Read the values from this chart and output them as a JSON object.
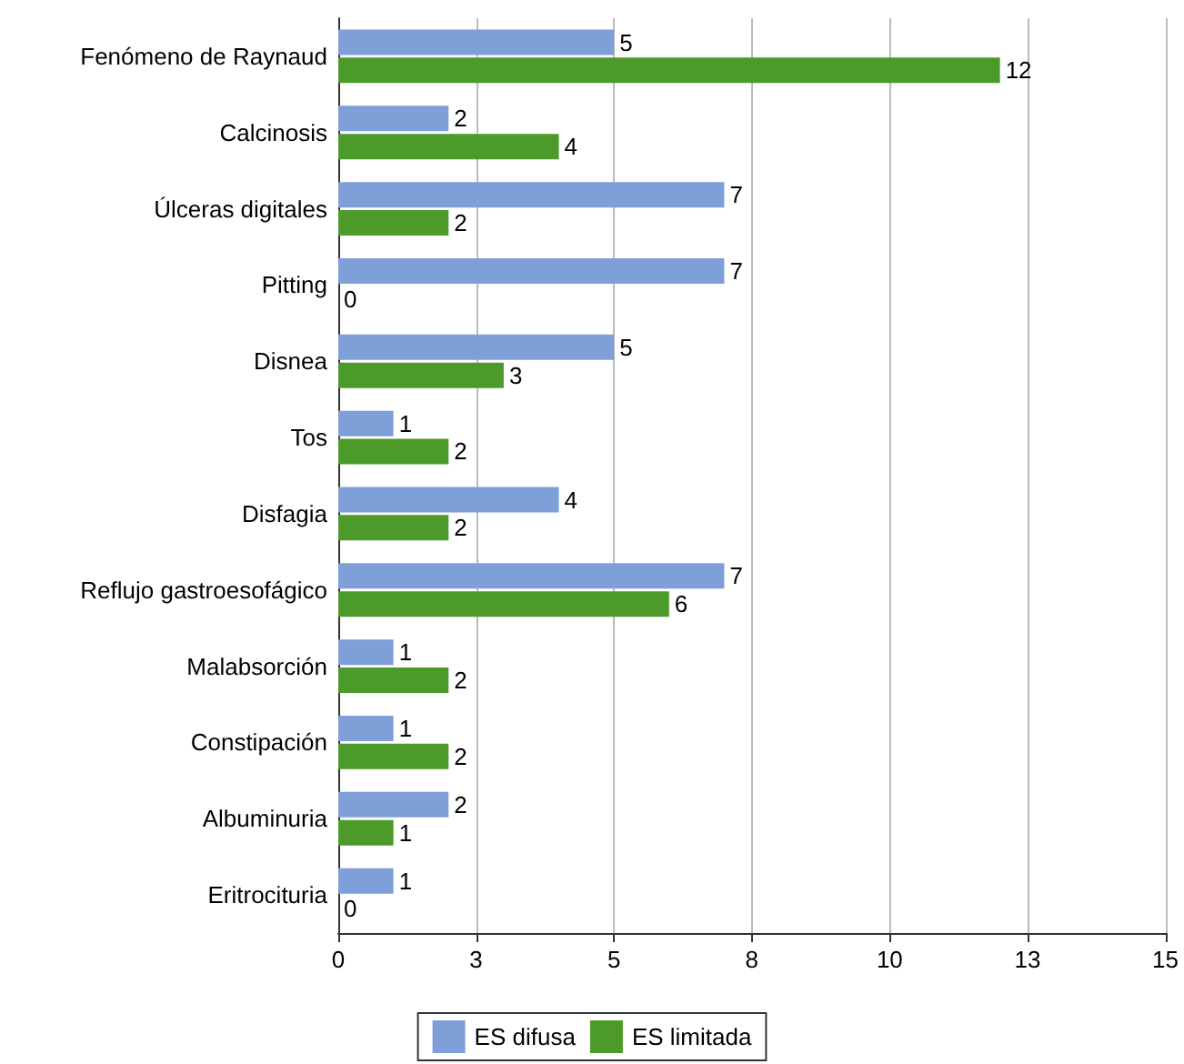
{
  "chart_data": {
    "type": "bar",
    "orientation": "horizontal",
    "categories": [
      "Fenómeno de Raynaud",
      "Calcinosis",
      "Úlceras digitales",
      "Pitting",
      "Disnea",
      "Tos",
      "Disfagia",
      "Reflujo gastroesofágico",
      "Malabsorción",
      "Constipación",
      "Albuminuria",
      "Eritrocituria"
    ],
    "series": [
      {
        "name": "ES difusa",
        "color": "#7f9fd9",
        "values": [
          5,
          2,
          7,
          7,
          5,
          1,
          4,
          7,
          1,
          1,
          2,
          1
        ]
      },
      {
        "name": "ES limitada",
        "color": "#4c9a2a",
        "values": [
          12,
          4,
          2,
          0,
          3,
          2,
          2,
          6,
          2,
          2,
          1,
          0
        ]
      }
    ],
    "xlim": [
      0,
      15
    ],
    "xticks": [
      {
        "value": 0,
        "label": "0"
      },
      {
        "value": 2.5,
        "label": "3"
      },
      {
        "value": 5,
        "label": "5"
      },
      {
        "value": 7.5,
        "label": "8"
      },
      {
        "value": 10,
        "label": "10"
      },
      {
        "value": 12.5,
        "label": "13"
      },
      {
        "value": 15,
        "label": "15"
      }
    ],
    "data_labels": true,
    "grid": "x",
    "legend": "bottom"
  }
}
